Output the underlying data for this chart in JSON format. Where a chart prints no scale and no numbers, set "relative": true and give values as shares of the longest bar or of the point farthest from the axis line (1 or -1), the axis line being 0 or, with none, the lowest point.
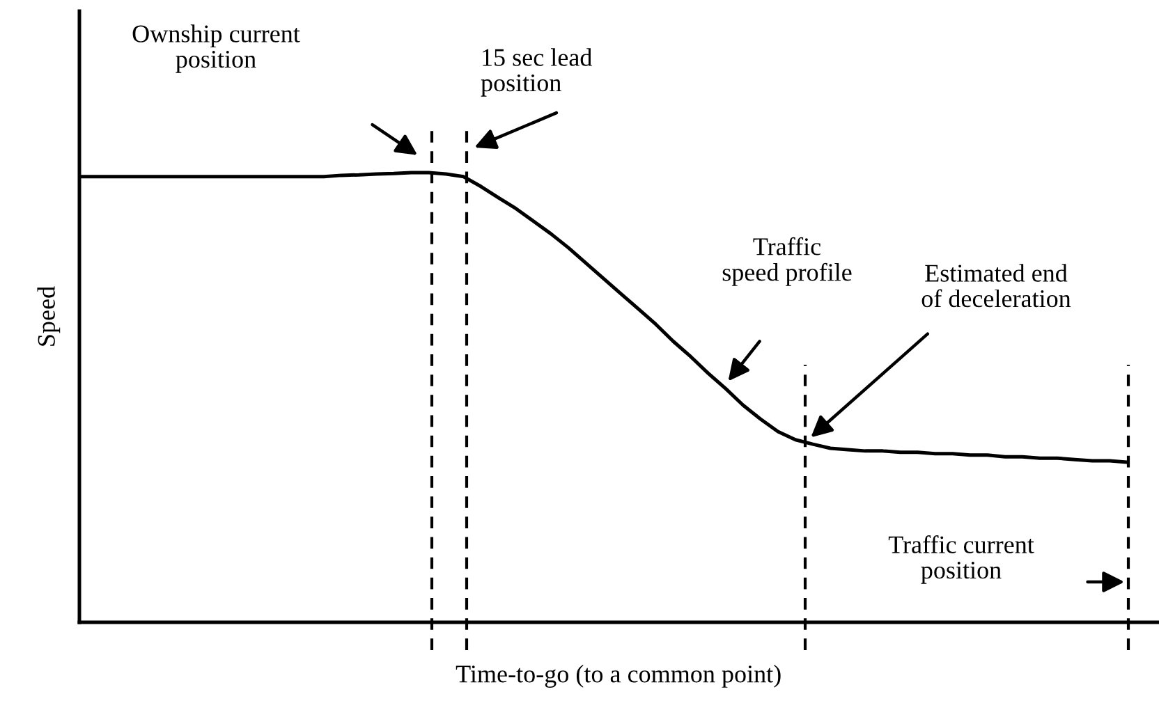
{
  "chart_data": {
    "type": "line",
    "relative": true,
    "xlabel": "Time-to-go (to a common point)",
    "ylabel": "Speed",
    "color": "#000000",
    "categories": [
      null,
      null,
      null,
      null,
      null,
      null,
      null,
      null,
      null,
      null,
      null,
      null,
      null,
      null,
      null,
      null,
      null,
      null,
      null,
      null,
      null,
      null,
      null,
      null,
      null,
      null,
      null,
      null,
      null,
      null,
      null,
      null,
      null,
      null,
      null,
      null,
      null,
      null,
      null,
      null,
      null,
      null,
      null,
      null,
      null,
      null,
      null,
      null,
      null,
      null,
      null,
      null,
      null,
      null,
      null,
      null,
      null,
      null,
      null,
      null,
      null
    ],
    "values": [
      0.991,
      0.991,
      0.991,
      0.991,
      0.991,
      0.991,
      0.991,
      0.991,
      0.991,
      0.991,
      0.991,
      0.991,
      0.991,
      0.991,
      0.991,
      0.994,
      0.995,
      0.997,
      0.998,
      1.0,
      1.0,
      0.997,
      0.991,
      0.969,
      0.944,
      0.92,
      0.892,
      0.864,
      0.833,
      0.799,
      0.765,
      0.731,
      0.697,
      0.663,
      0.625,
      0.591,
      0.554,
      0.52,
      0.483,
      0.452,
      0.424,
      0.406,
      0.396,
      0.387,
      0.384,
      0.381,
      0.381,
      0.378,
      0.378,
      0.375,
      0.375,
      0.372,
      0.372,
      0.368,
      0.368,
      0.365,
      0.365,
      0.362,
      0.359,
      0.359,
      0.356
    ],
    "annotations": [
      "Ownship current\nposition",
      "15 sec lead\nposition",
      "Traffic\nspeed profile",
      "Estimated end\nof deceleration",
      "Traffic current\nposition"
    ],
    "legend": false,
    "marker": "none",
    "line_style": "solid"
  }
}
